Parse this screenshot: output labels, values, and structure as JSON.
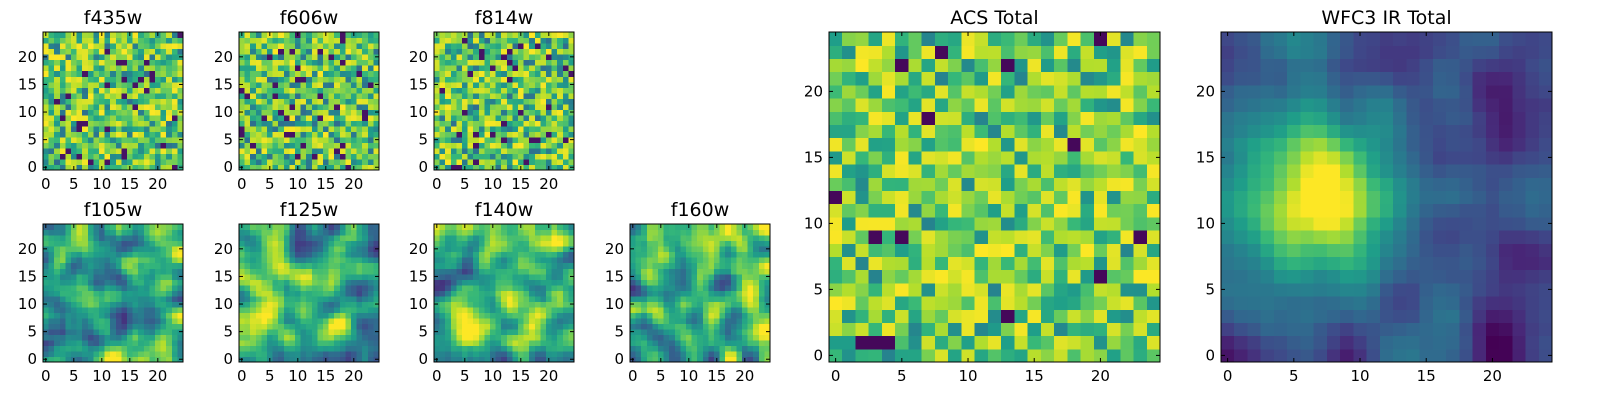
{
  "chart_data": [
    {
      "type": "heatmap",
      "title": "f435w",
      "xticks": [
        0,
        5,
        10,
        15,
        20
      ],
      "yticks": [
        0,
        5,
        10,
        15,
        20
      ],
      "xlim": [
        0,
        24
      ],
      "ylim": [
        0,
        24
      ],
      "grid_size": [
        25,
        25
      ],
      "smoothness": "noise",
      "seed": 11,
      "colormap": "viridis"
    },
    {
      "type": "heatmap",
      "title": "f606w",
      "xticks": [
        0,
        5,
        10,
        15,
        20
      ],
      "yticks": [
        0,
        5,
        10,
        15,
        20
      ],
      "xlim": [
        0,
        24
      ],
      "ylim": [
        0,
        24
      ],
      "grid_size": [
        25,
        25
      ],
      "smoothness": "noise",
      "seed": 23,
      "colormap": "viridis"
    },
    {
      "type": "heatmap",
      "title": "f814w",
      "xticks": [
        0,
        5,
        10,
        15,
        20
      ],
      "yticks": [
        0,
        5,
        10,
        15,
        20
      ],
      "xlim": [
        0,
        24
      ],
      "ylim": [
        0,
        24
      ],
      "grid_size": [
        25,
        25
      ],
      "smoothness": "noise",
      "seed": 37,
      "colormap": "viridis"
    },
    {
      "type": "heatmap",
      "title": "f105w",
      "xticks": [
        0,
        5,
        10,
        15,
        20
      ],
      "yticks": [
        0,
        5,
        10,
        15,
        20
      ],
      "xlim": [
        0,
        24
      ],
      "ylim": [
        0,
        24
      ],
      "grid_size": [
        25,
        25
      ],
      "smoothness": "smooth",
      "seed": 41,
      "colormap": "viridis"
    },
    {
      "type": "heatmap",
      "title": "f125w",
      "xticks": [
        0,
        5,
        10,
        15,
        20
      ],
      "yticks": [
        0,
        5,
        10,
        15,
        20
      ],
      "xlim": [
        0,
        24
      ],
      "ylim": [
        0,
        24
      ],
      "grid_size": [
        25,
        25
      ],
      "smoothness": "smooth",
      "seed": 53,
      "colormap": "viridis"
    },
    {
      "type": "heatmap",
      "title": "f140w",
      "xticks": [
        0,
        5,
        10,
        15,
        20
      ],
      "yticks": [
        0,
        5,
        10,
        15,
        20
      ],
      "xlim": [
        0,
        24
      ],
      "ylim": [
        0,
        24
      ],
      "grid_size": [
        25,
        25
      ],
      "smoothness": "smooth",
      "seed": 67,
      "colormap": "viridis"
    },
    {
      "type": "heatmap",
      "title": "f160w",
      "xticks": [
        0,
        5,
        10,
        15,
        20
      ],
      "yticks": [
        0,
        5,
        10,
        15,
        20
      ],
      "xlim": [
        0,
        24
      ],
      "ylim": [
        0,
        24
      ],
      "grid_size": [
        25,
        25
      ],
      "smoothness": "smooth",
      "seed": 79,
      "colormap": "viridis"
    },
    {
      "type": "heatmap",
      "title": "ACS Total",
      "xticks": [
        0,
        5,
        10,
        15,
        20
      ],
      "yticks": [
        0,
        5,
        10,
        15,
        20
      ],
      "xlim": [
        0,
        24
      ],
      "ylim": [
        0,
        24
      ],
      "grid_size": [
        25,
        25
      ],
      "smoothness": "noise-bright",
      "seed": 97,
      "colormap": "viridis"
    },
    {
      "type": "heatmap",
      "title": "WFC3 IR Total",
      "xticks": [
        0,
        5,
        10,
        15,
        20
      ],
      "yticks": [
        0,
        5,
        10,
        15,
        20
      ],
      "xlim": [
        0,
        24
      ],
      "ylim": [
        0,
        24
      ],
      "grid_size": [
        25,
        25
      ],
      "smoothness": "smooth-source",
      "seed": 131,
      "colormap": "viridis"
    }
  ]
}
